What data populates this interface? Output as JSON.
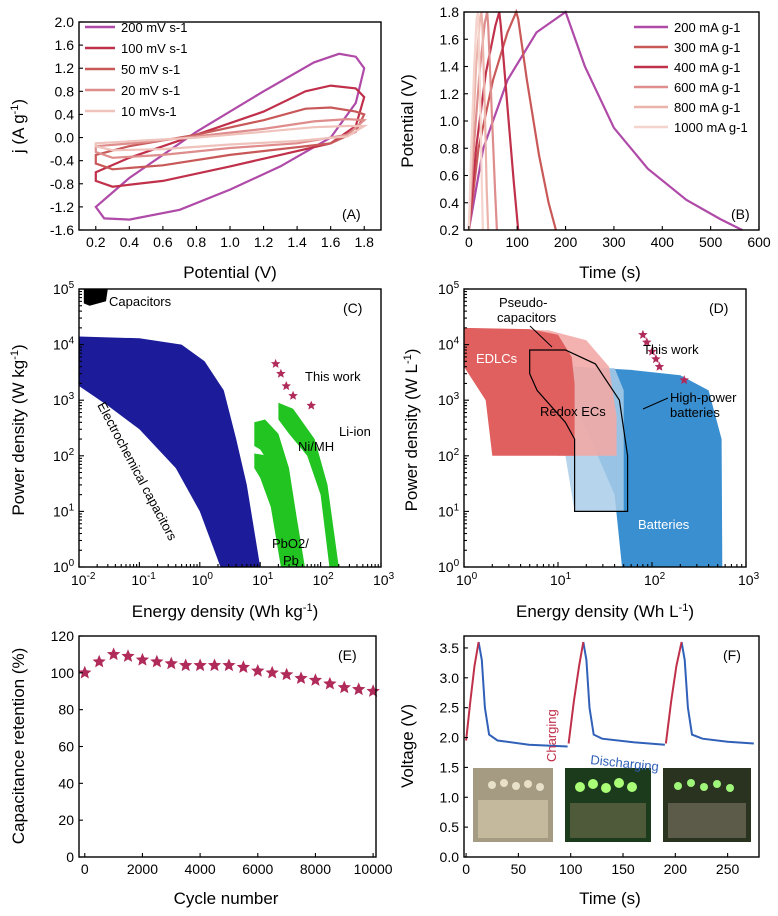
{
  "chart_data": [
    {
      "id": "A",
      "type": "line",
      "panel_label": "(A)",
      "xlabel": "Potential (V)",
      "ylabel": "j (A g-1)",
      "xlim": [
        0.1,
        1.9
      ],
      "ylim": [
        -1.6,
        2.0
      ],
      "xticks": [
        "0.2",
        "0.4",
        "0.6",
        "0.8",
        "1.0",
        "1.2",
        "1.4",
        "1.6",
        "1.8"
      ],
      "yticks": [
        "-1.6",
        "-1.2",
        "-0.8",
        "-0.4",
        "0.0",
        "0.4",
        "0.8",
        "1.2",
        "1.6",
        "2.0"
      ],
      "series": [
        {
          "name": "200 mV s-1",
          "color": "#b04aa8",
          "upper": [
            [
              0.2,
              -1.2
            ],
            [
              0.4,
              -0.7
            ],
            [
              0.8,
              0.1
            ],
            [
              1.2,
              0.8
            ],
            [
              1.5,
              1.3
            ],
            [
              1.65,
              1.45
            ],
            [
              1.75,
              1.4
            ],
            [
              1.8,
              1.2
            ]
          ],
          "lower": [
            [
              1.8,
              1.2
            ],
            [
              1.75,
              0.6
            ],
            [
              1.6,
              0.0
            ],
            [
              1.3,
              -0.5
            ],
            [
              1.0,
              -0.9
            ],
            [
              0.7,
              -1.25
            ],
            [
              0.4,
              -1.42
            ],
            [
              0.25,
              -1.4
            ],
            [
              0.2,
              -1.2
            ]
          ]
        },
        {
          "name": "100 mV s-1",
          "color": "#c0304a",
          "upper": [
            [
              0.2,
              -0.6
            ],
            [
              0.4,
              -0.35
            ],
            [
              0.8,
              0.05
            ],
            [
              1.2,
              0.45
            ],
            [
              1.45,
              0.8
            ],
            [
              1.6,
              0.9
            ],
            [
              1.75,
              0.85
            ],
            [
              1.8,
              0.7
            ]
          ],
          "lower": [
            [
              1.8,
              0.7
            ],
            [
              1.75,
              0.2
            ],
            [
              1.6,
              -0.1
            ],
            [
              1.3,
              -0.3
            ],
            [
              1.0,
              -0.5
            ],
            [
              0.6,
              -0.75
            ],
            [
              0.3,
              -0.85
            ],
            [
              0.2,
              -0.75
            ],
            [
              0.2,
              -0.6
            ]
          ]
        },
        {
          "name": "50 mV s-1",
          "color": "#c95858",
          "upper": [
            [
              0.2,
              -0.3
            ],
            [
              0.4,
              -0.15
            ],
            [
              0.8,
              0.05
            ],
            [
              1.2,
              0.3
            ],
            [
              1.45,
              0.5
            ],
            [
              1.6,
              0.52
            ],
            [
              1.75,
              0.45
            ],
            [
              1.8,
              0.4
            ]
          ],
          "lower": [
            [
              1.8,
              0.4
            ],
            [
              1.75,
              0.1
            ],
            [
              1.6,
              -0.1
            ],
            [
              1.3,
              -0.2
            ],
            [
              1.0,
              -0.3
            ],
            [
              0.6,
              -0.48
            ],
            [
              0.3,
              -0.55
            ],
            [
              0.2,
              -0.45
            ],
            [
              0.2,
              -0.3
            ]
          ]
        },
        {
          "name": "20 mV s-1",
          "color": "#de8c8c",
          "upper": [
            [
              0.2,
              -0.15
            ],
            [
              0.5,
              -0.08
            ],
            [
              0.8,
              0.02
            ],
            [
              1.2,
              0.15
            ],
            [
              1.5,
              0.28
            ],
            [
              1.7,
              0.32
            ],
            [
              1.8,
              0.3
            ]
          ],
          "lower": [
            [
              1.8,
              0.3
            ],
            [
              1.7,
              0.05
            ],
            [
              1.4,
              -0.1
            ],
            [
              1.0,
              -0.18
            ],
            [
              0.6,
              -0.3
            ],
            [
              0.3,
              -0.35
            ],
            [
              0.2,
              -0.25
            ],
            [
              0.2,
              -0.15
            ]
          ]
        },
        {
          "name": "10 mVs-1",
          "color": "#efc2bc",
          "upper": [
            [
              0.2,
              -0.1
            ],
            [
              0.5,
              -0.05
            ],
            [
              0.8,
              0.0
            ],
            [
              1.2,
              0.1
            ],
            [
              1.5,
              0.18
            ],
            [
              1.7,
              0.2
            ],
            [
              1.8,
              0.2
            ]
          ],
          "lower": [
            [
              1.8,
              0.2
            ],
            [
              1.7,
              0.02
            ],
            [
              1.4,
              -0.06
            ],
            [
              1.0,
              -0.12
            ],
            [
              0.6,
              -0.2
            ],
            [
              0.3,
              -0.22
            ],
            [
              0.2,
              -0.15
            ],
            [
              0.2,
              -0.1
            ]
          ]
        }
      ]
    },
    {
      "id": "B",
      "type": "line",
      "panel_label": "(B)",
      "xlabel": "Time (s)",
      "ylabel": "Potential (V)",
      "xlim": [
        -10,
        600
      ],
      "ylim": [
        0.2,
        1.8
      ],
      "xticks": [
        "0",
        "100",
        "200",
        "300",
        "400",
        "500",
        "600"
      ],
      "yticks": [
        "0.2",
        "0.4",
        "0.6",
        "0.8",
        "1.0",
        "1.2",
        "1.4",
        "1.6",
        "1.8"
      ],
      "series": [
        {
          "name": "200 mA g-1",
          "color": "#b04aa8",
          "points": [
            [
              0,
              0.2
            ],
            [
              30,
              0.8
            ],
            [
              80,
              1.3
            ],
            [
              140,
              1.65
            ],
            [
              200,
              1.8
            ],
            [
              205,
              1.75
            ],
            [
              240,
              1.4
            ],
            [
              300,
              0.95
            ],
            [
              370,
              0.65
            ],
            [
              450,
              0.42
            ],
            [
              520,
              0.28
            ],
            [
              565,
              0.2
            ]
          ]
        },
        {
          "name": "300 mA g-1",
          "color": "#c95858",
          "points": [
            [
              0,
              0.2
            ],
            [
              20,
              0.8
            ],
            [
              50,
              1.3
            ],
            [
              80,
              1.65
            ],
            [
              98,
              1.8
            ],
            [
              102,
              1.75
            ],
            [
              120,
              1.3
            ],
            [
              145,
              0.75
            ],
            [
              165,
              0.4
            ],
            [
              180,
              0.2
            ]
          ]
        },
        {
          "name": "400 mA g-1",
          "color": "#c0304a",
          "points": [
            [
              0,
              0.2
            ],
            [
              15,
              0.8
            ],
            [
              35,
              1.35
            ],
            [
              55,
              1.7
            ],
            [
              63,
              1.8
            ],
            [
              66,
              1.7
            ],
            [
              80,
              1.1
            ],
            [
              93,
              0.55
            ],
            [
              102,
              0.2
            ]
          ]
        },
        {
          "name": "600 mA g-1",
          "color": "#de8c8c",
          "points": [
            [
              0,
              0.2
            ],
            [
              10,
              0.8
            ],
            [
              22,
              1.35
            ],
            [
              33,
              1.72
            ],
            [
              38,
              1.8
            ],
            [
              40,
              1.7
            ],
            [
              47,
              1.1
            ],
            [
              54,
              0.5
            ],
            [
              58,
              0.2
            ]
          ]
        },
        {
          "name": "800 mA g-1",
          "color": "#ebb3aa",
          "points": [
            [
              0,
              0.2
            ],
            [
              7,
              0.8
            ],
            [
              15,
              1.4
            ],
            [
              23,
              1.75
            ],
            [
              26,
              1.8
            ],
            [
              28,
              1.7
            ],
            [
              33,
              1.1
            ],
            [
              37,
              0.5
            ],
            [
              40,
              0.2
            ]
          ]
        },
        {
          "name": "1000 mA g-1",
          "color": "#f4d4cc",
          "points": [
            [
              0,
              0.2
            ],
            [
              5,
              0.8
            ],
            [
              11,
              1.4
            ],
            [
              16,
              1.75
            ],
            [
              19,
              1.8
            ],
            [
              20,
              1.7
            ],
            [
              24,
              1.1
            ],
            [
              27,
              0.5
            ],
            [
              29,
              0.2
            ]
          ]
        }
      ]
    },
    {
      "id": "C",
      "type": "area",
      "panel_label": "(C)",
      "scale": "log-log",
      "xlabel": "Energy density (Wh kg-1)",
      "ylabel": "Power density (W kg-1)",
      "xlim_exp": [
        -2,
        3
      ],
      "ylim_exp": [
        0,
        5
      ],
      "annotations": [
        "Capacitors",
        "Electrochemical capacitors",
        "This work",
        "Ni/MH",
        "Li-ion",
        "PbO2/",
        "Pb"
      ],
      "this_work": [
        [
          18,
          4500
        ],
        [
          22,
          3000
        ],
        [
          27,
          1800
        ],
        [
          35,
          1200
        ],
        [
          70,
          800
        ]
      ],
      "colors": {
        "capacitors": "#000000",
        "ec": "#1c1c9a",
        "batteries": "#22c422",
        "star": "#b02a5a"
      }
    },
    {
      "id": "D",
      "type": "area",
      "panel_label": "(D)",
      "scale": "log-log",
      "xlabel": "Energy density (Wh L-1)",
      "ylabel": "Power density (W L-1)",
      "xlim_exp": [
        0,
        3
      ],
      "ylim_exp": [
        0,
        5
      ],
      "annotations": [
        "Pseudo-",
        "capacitors",
        "EDLCs",
        "Redox ECs",
        "This work",
        "High-power",
        "batteries",
        "Batteries"
      ],
      "this_work": [
        [
          80,
          15000
        ],
        [
          88,
          11000
        ],
        [
          100,
          7500
        ],
        [
          110,
          5500
        ],
        [
          120,
          4000
        ],
        [
          220,
          2300
        ]
      ],
      "colors": {
        "edlc": "#e06060",
        "pseudo": "#f2aaa6",
        "battery": "#3a8fd0",
        "battery_light": "#a9cde8",
        "star": "#b02a5a"
      }
    },
    {
      "id": "E",
      "type": "scatter",
      "panel_label": "(E)",
      "xlabel": "Cycle number",
      "ylabel": "Capacitance retention (%)",
      "xlim": [
        -200,
        10100
      ],
      "ylim": [
        0,
        120
      ],
      "xticks": [
        "0",
        "2000",
        "4000",
        "6000",
        "8000",
        "10000"
      ],
      "yticks": [
        "0",
        "20",
        "40",
        "60",
        "80",
        "100",
        "120"
      ],
      "x": [
        0,
        500,
        1000,
        1500,
        2000,
        2500,
        3000,
        3500,
        4000,
        4500,
        5000,
        5500,
        6000,
        6500,
        7000,
        7500,
        8000,
        8500,
        9000,
        9500,
        10000
      ],
      "values": [
        100,
        106,
        110,
        109,
        107,
        106,
        105,
        104,
        104,
        104,
        104,
        103,
        101,
        100,
        99,
        97,
        96,
        94,
        92,
        91,
        90
      ],
      "color": "#b02a5a"
    },
    {
      "id": "F",
      "type": "line",
      "panel_label": "(F)",
      "xlabel": "Time (s)",
      "ylabel": "Voltage (V)",
      "xlim": [
        -2,
        280
      ],
      "ylim": [
        0.0,
        3.7
      ],
      "xticks": [
        "0",
        "50",
        "100",
        "150",
        "200",
        "250"
      ],
      "yticks": [
        "0.0",
        "0.5",
        "1.0",
        "1.5",
        "2.0",
        "2.5",
        "3.0",
        "3.5"
      ],
      "labels": {
        "charging": "Charging",
        "discharging": "Discharging"
      },
      "charge_color": "#c0304a",
      "discharge_color": "#3060b8",
      "charge_segments": [
        [
          [
            0,
            1.95
          ],
          [
            4,
            2.6
          ],
          [
            8,
            3.2
          ],
          [
            12,
            3.6
          ]
        ],
        [
          [
            98,
            1.9
          ],
          [
            103,
            2.6
          ],
          [
            108,
            3.2
          ],
          [
            112,
            3.6
          ]
        ],
        [
          [
            191,
            1.9
          ],
          [
            196,
            2.6
          ],
          [
            201,
            3.2
          ],
          [
            206,
            3.6
          ]
        ]
      ],
      "discharge_segments": [
        [
          [
            12,
            3.6
          ],
          [
            15,
            3.3
          ],
          [
            18,
            2.5
          ],
          [
            22,
            2.05
          ],
          [
            30,
            1.95
          ],
          [
            60,
            1.88
          ],
          [
            97,
            1.85
          ]
        ],
        [
          [
            112,
            3.6
          ],
          [
            115,
            3.3
          ],
          [
            118,
            2.5
          ],
          [
            122,
            2.05
          ],
          [
            130,
            1.98
          ],
          [
            160,
            1.92
          ],
          [
            190,
            1.88
          ]
        ],
        [
          [
            206,
            3.6
          ],
          [
            209,
            3.3
          ],
          [
            212,
            2.5
          ],
          [
            216,
            2.05
          ],
          [
            226,
            1.98
          ],
          [
            250,
            1.93
          ],
          [
            275,
            1.9
          ]
        ]
      ]
    }
  ]
}
